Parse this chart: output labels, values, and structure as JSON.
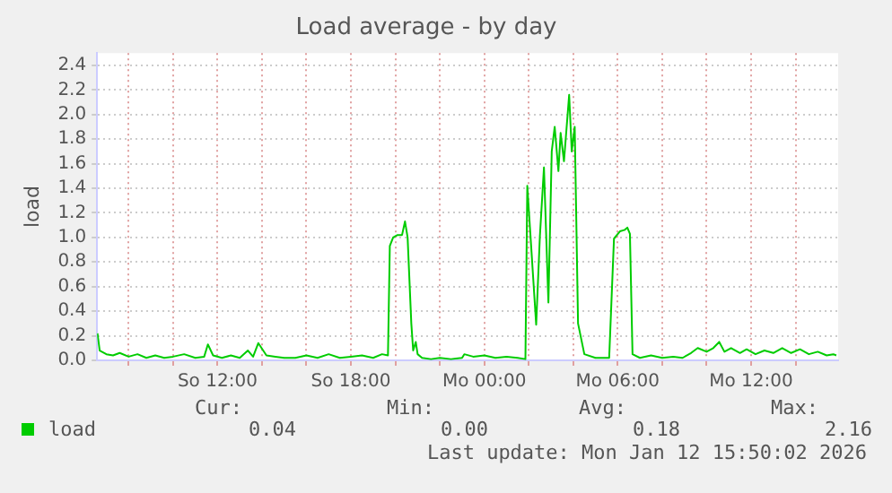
{
  "chart_data": {
    "type": "line",
    "title": "Load average - by day",
    "ylabel": "load",
    "x": [
      "2026-01-11T06:36",
      "2026-01-11T06:42",
      "2026-01-11T07:00",
      "2026-01-11T07:18",
      "2026-01-11T07:36",
      "2026-01-11T08:00",
      "2026-01-11T08:24",
      "2026-01-11T08:48",
      "2026-01-11T09:12",
      "2026-01-11T09:36",
      "2026-01-11T10:00",
      "2026-01-11T10:30",
      "2026-01-11T11:00",
      "2026-01-11T11:24",
      "2026-01-11T11:34",
      "2026-01-11T11:48",
      "2026-01-11T12:12",
      "2026-01-11T12:36",
      "2026-01-11T13:00",
      "2026-01-11T13:22",
      "2026-01-11T13:36",
      "2026-01-11T13:50",
      "2026-01-11T14:12",
      "2026-01-11T14:36",
      "2026-01-11T15:00",
      "2026-01-11T15:30",
      "2026-01-11T16:00",
      "2026-01-11T16:30",
      "2026-01-11T17:00",
      "2026-01-11T17:30",
      "2026-01-11T18:00",
      "2026-01-11T18:30",
      "2026-01-11T19:00",
      "2026-01-11T19:24",
      "2026-01-11T19:40",
      "2026-01-11T19:45",
      "2026-01-11T19:54",
      "2026-01-11T20:06",
      "2026-01-11T20:18",
      "2026-01-11T20:26",
      "2026-01-11T20:33",
      "2026-01-11T20:43",
      "2026-01-11T20:48",
      "2026-01-11T20:55",
      "2026-01-11T21:00",
      "2026-01-11T21:12",
      "2026-01-11T21:36",
      "2026-01-11T22:00",
      "2026-01-11T22:30",
      "2026-01-11T23:00",
      "2026-01-11T23:06",
      "2026-01-11T23:30",
      "2026-01-12T00:00",
      "2026-01-12T00:30",
      "2026-01-12T01:00",
      "2026-01-12T01:30",
      "2026-01-12T01:51",
      "2026-01-12T01:56",
      "2026-01-12T02:20",
      "2026-01-12T02:30",
      "2026-01-12T02:41",
      "2026-01-12T02:53",
      "2026-01-12T03:02",
      "2026-01-12T03:10",
      "2026-01-12T03:20",
      "2026-01-12T03:26",
      "2026-01-12T03:35",
      "2026-01-12T03:49",
      "2026-01-12T03:56",
      "2026-01-12T04:04",
      "2026-01-12T04:13",
      "2026-01-12T04:30",
      "2026-01-12T05:00",
      "2026-01-12T05:37",
      "2026-01-12T05:50",
      "2026-01-12T06:06",
      "2026-01-12T06:18",
      "2026-01-12T06:26",
      "2026-01-12T06:33",
      "2026-01-12T06:40",
      "2026-01-12T07:00",
      "2026-01-12T07:30",
      "2026-01-12T08:00",
      "2026-01-12T08:30",
      "2026-01-12T08:55",
      "2026-01-12T09:18",
      "2026-01-12T09:36",
      "2026-01-12T10:00",
      "2026-01-12T10:18",
      "2026-01-12T10:34",
      "2026-01-12T10:48",
      "2026-01-12T11:06",
      "2026-01-12T11:30",
      "2026-01-12T11:48",
      "2026-01-12T12:12",
      "2026-01-12T12:36",
      "2026-01-12T13:00",
      "2026-01-12T13:24",
      "2026-01-12T13:48",
      "2026-01-12T14:12",
      "2026-01-12T14:36",
      "2026-01-12T15:00",
      "2026-01-12T15:24",
      "2026-01-12T15:42",
      "2026-01-12T15:50"
    ],
    "series": [
      {
        "name": "load",
        "color": "#00cc00",
        "values": [
          0.22,
          0.08,
          0.05,
          0.04,
          0.06,
          0.03,
          0.05,
          0.02,
          0.04,
          0.02,
          0.03,
          0.05,
          0.02,
          0.03,
          0.13,
          0.04,
          0.02,
          0.04,
          0.02,
          0.08,
          0.03,
          0.14,
          0.04,
          0.03,
          0.02,
          0.02,
          0.04,
          0.02,
          0.05,
          0.02,
          0.03,
          0.04,
          0.02,
          0.05,
          0.04,
          0.93,
          1.0,
          1.02,
          1.02,
          1.13,
          1.0,
          0.3,
          0.08,
          0.15,
          0.05,
          0.02,
          0.01,
          0.02,
          0.01,
          0.02,
          0.05,
          0.03,
          0.04,
          0.02,
          0.03,
          0.02,
          0.01,
          1.42,
          0.29,
          1.01,
          1.57,
          0.47,
          1.7,
          1.9,
          1.54,
          1.85,
          1.62,
          2.16,
          1.7,
          1.9,
          0.3,
          0.05,
          0.02,
          0.02,
          0.99,
          1.05,
          1.06,
          1.08,
          1.03,
          0.05,
          0.02,
          0.04,
          0.02,
          0.03,
          0.02,
          0.06,
          0.1,
          0.07,
          0.1,
          0.15,
          0.07,
          0.1,
          0.06,
          0.09,
          0.05,
          0.08,
          0.06,
          0.1,
          0.06,
          0.09,
          0.05,
          0.07,
          0.04,
          0.05,
          0.04
        ]
      }
    ],
    "xlim": [
      "2026-01-11T06:35",
      "2026-01-12T15:55"
    ],
    "xticks": [
      {
        "value": "2026-01-11T08:00",
        "label": null
      },
      {
        "value": "2026-01-11T10:00",
        "label": null
      },
      {
        "value": "2026-01-11T12:00",
        "label": "So 12:00"
      },
      {
        "value": "2026-01-11T14:00",
        "label": null
      },
      {
        "value": "2026-01-11T16:00",
        "label": null
      },
      {
        "value": "2026-01-11T18:00",
        "label": "So 18:00"
      },
      {
        "value": "2026-01-11T20:00",
        "label": null
      },
      {
        "value": "2026-01-11T22:00",
        "label": null
      },
      {
        "value": "2026-01-12T00:00",
        "label": "Mo 00:00"
      },
      {
        "value": "2026-01-12T02:00",
        "label": null
      },
      {
        "value": "2026-01-12T04:00",
        "label": null
      },
      {
        "value": "2026-01-12T06:00",
        "label": "Mo 06:00"
      },
      {
        "value": "2026-01-12T08:00",
        "label": null
      },
      {
        "value": "2026-01-12T10:00",
        "label": null
      },
      {
        "value": "2026-01-12T12:00",
        "label": "Mo 12:00"
      },
      {
        "value": "2026-01-12T14:00",
        "label": null
      }
    ],
    "ylim": [
      0,
      2.5
    ],
    "yticks": [
      {
        "value": 0,
        "label": "0.0"
      },
      {
        "value": 0.2,
        "label": "0.2"
      },
      {
        "value": 0.4,
        "label": "0.4"
      },
      {
        "value": 0.6,
        "label": "0.6"
      },
      {
        "value": 0.8,
        "label": "0.8"
      },
      {
        "value": 1,
        "label": "1.0"
      },
      {
        "value": 1.2,
        "label": "1.2"
      },
      {
        "value": 1.4,
        "label": "1.4"
      },
      {
        "value": 1.6,
        "label": "1.6"
      },
      {
        "value": 1.8,
        "label": "1.8"
      },
      {
        "value": 2,
        "label": "2.0"
      },
      {
        "value": 2.2,
        "label": "2.2"
      },
      {
        "value": 2.4,
        "label": "2.4"
      }
    ],
    "grid": true,
    "legend": "bottom left",
    "marker": "none",
    "line_style": "solid",
    "annotations": [
      "Cur:",
      "Min:",
      "Avg:",
      "Max:",
      "0.04",
      "0.00",
      "0.18",
      "2.16",
      "Last update: Mon Jan 12 15:50:02 2026"
    ]
  }
}
